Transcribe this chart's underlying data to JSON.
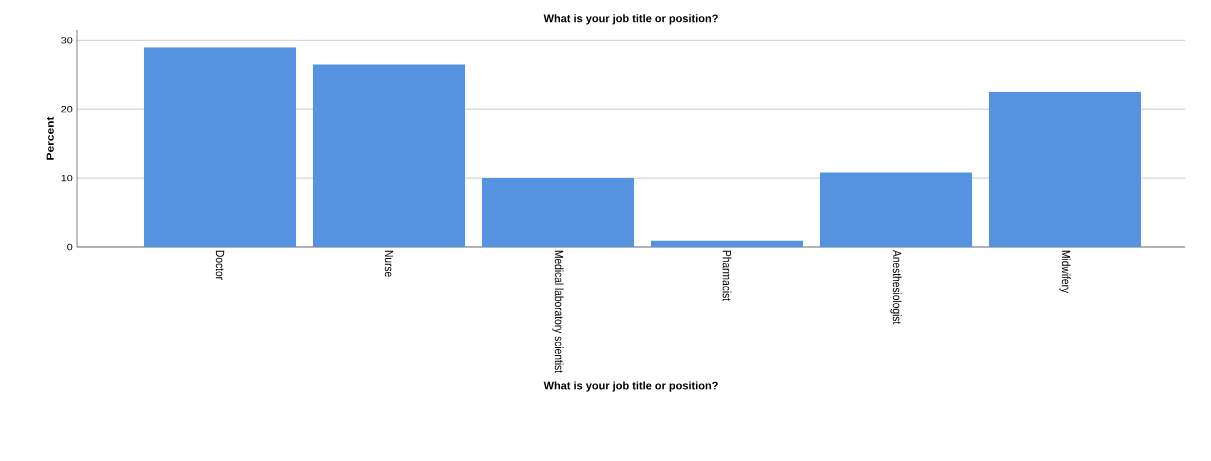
{
  "chart_data": {
    "type": "bar",
    "title": "What is your job title or position?",
    "xlabel": "What is your job title or position?",
    "ylabel": "Percent",
    "categories": [
      "Doctor",
      "Nurse",
      "Medical laboratory scientist",
      "Pharmacist",
      "Anesthesiologist",
      "Midwifery"
    ],
    "values": [
      29.0,
      26.5,
      10.0,
      0.9,
      10.8,
      22.5
    ],
    "color": "#5593e0",
    "ylim": [
      0,
      31.5
    ],
    "yticks": [
      0,
      10,
      20,
      30
    ],
    "grid": "y"
  }
}
